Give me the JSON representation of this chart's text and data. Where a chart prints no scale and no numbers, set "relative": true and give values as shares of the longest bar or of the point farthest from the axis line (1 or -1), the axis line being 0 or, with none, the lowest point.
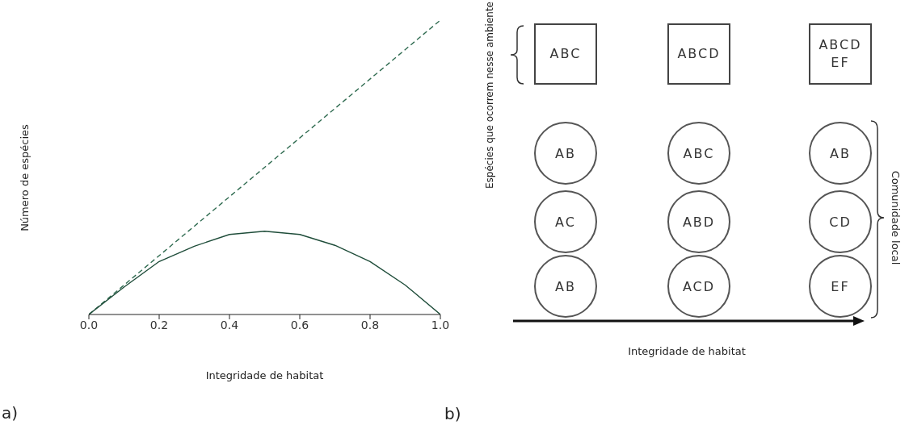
{
  "chart_data": [
    {
      "type": "line",
      "relative": true,
      "xlabel": "Integridade de habitat",
      "ylabel": "Número de espécies",
      "xlim": [
        0,
        1
      ],
      "xticks": [
        {
          "value": 0,
          "label": "0.0"
        },
        {
          "value": 0.2,
          "label": "0.2"
        },
        {
          "value": 0.4,
          "label": "0.4"
        },
        {
          "value": 0.6,
          "label": "0.6"
        },
        {
          "value": 0.8,
          "label": "0.8"
        },
        {
          "value": 1,
          "label": "1.0"
        }
      ],
      "grid": false,
      "legend": false,
      "marker": "none",
      "annotations": [
        "a)"
      ],
      "series": [
        {
          "color": "#2f6b50",
          "line_style": "dashed",
          "x": [
            0,
            1
          ],
          "values": [
            0,
            1
          ]
        },
        {
          "color": "#1f4d3a",
          "line_style": "solid",
          "x": [
            0,
            0.1,
            0.2,
            0.3,
            0.4,
            0.5,
            0.6,
            0.7,
            0.8,
            0.9,
            1
          ],
          "values": [
            0,
            0.093,
            0.18,
            0.232,
            0.272,
            0.283,
            0.272,
            0.235,
            0.18,
            0.1,
            0
          ]
        }
      ]
    },
    {
      "type": "other",
      "xlabel": "Integridade de habitat",
      "ylabel": "Espécies que ocorrem nesse ambiente",
      "y2label": "Comunidade local",
      "annotations": [
        "ABC",
        "ABCD",
        "ABCD EF",
        "AB",
        "ABC",
        "AB",
        "AC",
        "ABD",
        "CD",
        "AB",
        "ACD",
        "EF",
        "b)"
      ]
    }
  ]
}
